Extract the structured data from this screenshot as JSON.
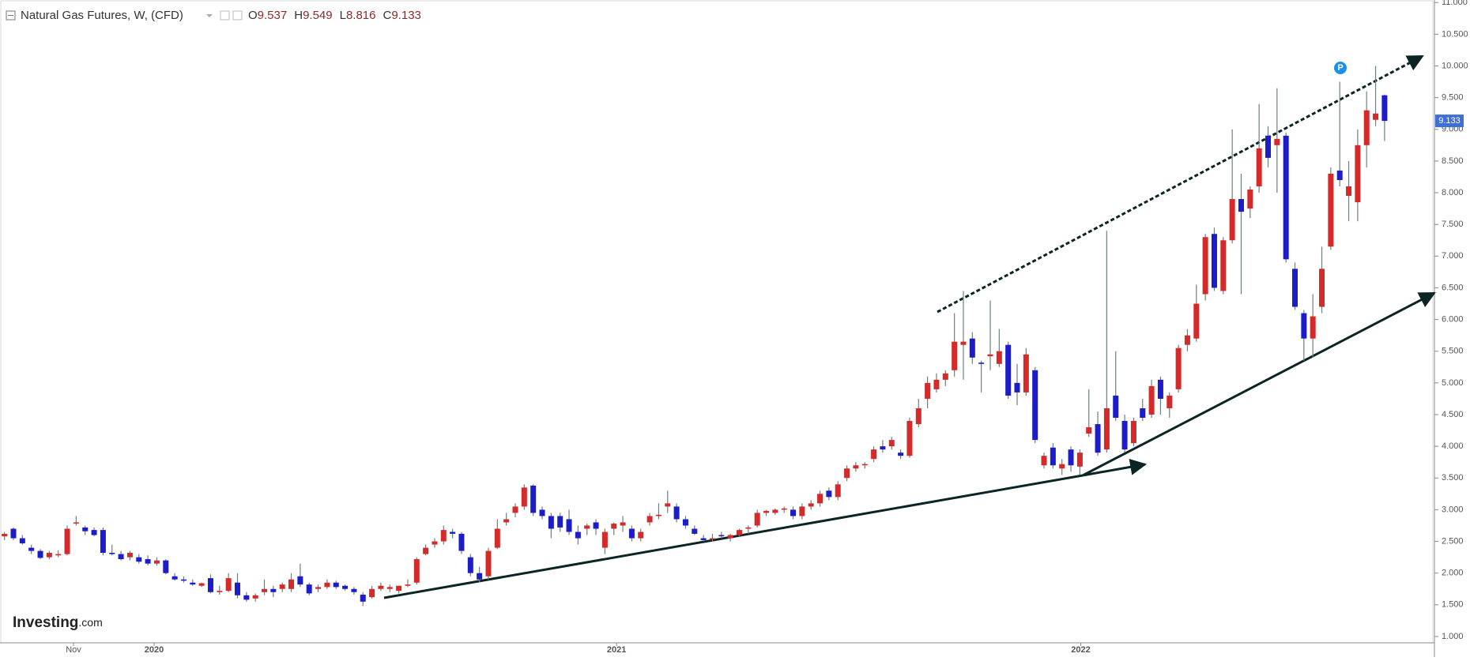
{
  "chart_data": {
    "type": "candlestick",
    "title": "Natural Gas Futures, W, (CFD)",
    "header_values": [
      {
        "prefix": "O",
        "value": 9.537
      },
      {
        "prefix": "H",
        "value": 9.549
      },
      {
        "prefix": "L",
        "value": 8.816
      },
      {
        "prefix": "C",
        "value": 9.133
      }
    ],
    "last_price": 9.133,
    "annotation": "P",
    "logo": {
      "brand": "Investing",
      "suffix": ".com"
    },
    "up_color": "#d42a2a",
    "down_color": "#1c1cc9",
    "wick_color": "#6f7f7f",
    "price_label_color": "#3d6fd6",
    "xlim": [
      -0.5,
      159.3
    ],
    "xticks": [
      {
        "value": 7.7,
        "label": "Nov"
      },
      {
        "value": 16.7,
        "label": "2020"
      },
      {
        "value": 68.3,
        "label": "2021"
      },
      {
        "value": 120.1,
        "label": "2022"
      }
    ],
    "ylim": [
      0.9,
      11.04
    ],
    "yticks": [
      {
        "value": 1,
        "label": "1.000"
      },
      {
        "value": 1.5,
        "label": "1.500"
      },
      {
        "value": 2,
        "label": "2.000"
      },
      {
        "value": 2.5,
        "label": "2.500"
      },
      {
        "value": 3,
        "label": "3.000"
      },
      {
        "value": 3.5,
        "label": "3.500"
      },
      {
        "value": 4,
        "label": "4.000"
      },
      {
        "value": 4.5,
        "label": "4.500"
      },
      {
        "value": 5,
        "label": "5.000"
      },
      {
        "value": 5.5,
        "label": "5.500"
      },
      {
        "value": 6,
        "label": "6.000"
      },
      {
        "value": 6.5,
        "label": "6.500"
      },
      {
        "value": 7,
        "label": "7.000"
      },
      {
        "value": 7.5,
        "label": "7.500"
      },
      {
        "value": 8,
        "label": "8.000"
      },
      {
        "value": 8.5,
        "label": "8.500"
      },
      {
        "value": 9,
        "label": "9.000"
      },
      {
        "value": 9.5,
        "label": "9.500"
      },
      {
        "value": 10,
        "label": "10.000"
      },
      {
        "value": 10.5,
        "label": "10.500"
      },
      {
        "value": 11,
        "label": "11.000"
      }
    ],
    "ohlc": [
      [
        2.58,
        2.65,
        2.52,
        2.62
      ],
      [
        2.7,
        2.72,
        2.52,
        2.55
      ],
      [
        2.55,
        2.6,
        2.45,
        2.47
      ],
      [
        2.4,
        2.45,
        2.3,
        2.35
      ],
      [
        2.35,
        2.38,
        2.22,
        2.24
      ],
      [
        2.25,
        2.35,
        2.22,
        2.32
      ],
      [
        2.28,
        2.36,
        2.25,
        2.3
      ],
      [
        2.3,
        2.75,
        2.28,
        2.7
      ],
      [
        2.78,
        2.9,
        2.75,
        2.8
      ],
      [
        2.72,
        2.75,
        2.6,
        2.66
      ],
      [
        2.68,
        2.72,
        2.58,
        2.6
      ],
      [
        2.68,
        2.72,
        2.28,
        2.32
      ],
      [
        2.32,
        2.45,
        2.28,
        2.3
      ],
      [
        2.3,
        2.35,
        2.2,
        2.22
      ],
      [
        2.25,
        2.35,
        2.2,
        2.32
      ],
      [
        2.25,
        2.3,
        2.15,
        2.18
      ],
      [
        2.22,
        2.28,
        2.12,
        2.15
      ],
      [
        2.15,
        2.25,
        2.12,
        2.2
      ],
      [
        2.2,
        2.22,
        1.98,
        2.0
      ],
      [
        1.95,
        2.0,
        1.88,
        1.9
      ],
      [
        1.9,
        1.95,
        1.85,
        1.88
      ],
      [
        1.85,
        1.9,
        1.8,
        1.82
      ],
      [
        1.8,
        1.85,
        1.78,
        1.84
      ],
      [
        1.92,
        1.98,
        1.68,
        1.7
      ],
      [
        1.7,
        1.8,
        1.66,
        1.72
      ],
      [
        1.72,
        2.0,
        1.7,
        1.92
      ],
      [
        1.85,
        2.0,
        1.6,
        1.65
      ],
      [
        1.65,
        1.7,
        1.55,
        1.58
      ],
      [
        1.6,
        1.68,
        1.55,
        1.65
      ],
      [
        1.7,
        1.9,
        1.65,
        1.75
      ],
      [
        1.75,
        1.8,
        1.62,
        1.7
      ],
      [
        1.75,
        1.85,
        1.7,
        1.82
      ],
      [
        1.75,
        2.0,
        1.7,
        1.9
      ],
      [
        1.95,
        2.15,
        1.78,
        1.82
      ],
      [
        1.82,
        1.85,
        1.65,
        1.68
      ],
      [
        1.75,
        1.82,
        1.7,
        1.78
      ],
      [
        1.78,
        1.9,
        1.75,
        1.85
      ],
      [
        1.85,
        1.88,
        1.75,
        1.78
      ],
      [
        1.8,
        1.82,
        1.72,
        1.75
      ],
      [
        1.75,
        1.78,
        1.66,
        1.7
      ],
      [
        1.66,
        1.7,
        1.48,
        1.55
      ],
      [
        1.62,
        1.8,
        1.6,
        1.75
      ],
      [
        1.75,
        1.85,
        1.72,
        1.8
      ],
      [
        1.75,
        1.82,
        1.7,
        1.78
      ],
      [
        1.72,
        1.8,
        1.68,
        1.8
      ],
      [
        1.8,
        1.9,
        1.78,
        1.82
      ],
      [
        1.85,
        2.25,
        1.82,
        2.22
      ],
      [
        2.3,
        2.45,
        2.28,
        2.4
      ],
      [
        2.45,
        2.55,
        2.4,
        2.5
      ],
      [
        2.5,
        2.75,
        2.45,
        2.68
      ],
      [
        2.65,
        2.7,
        2.55,
        2.62
      ],
      [
        2.62,
        2.65,
        2.3,
        2.35
      ],
      [
        2.25,
        2.3,
        1.95,
        2.0
      ],
      [
        2.0,
        2.1,
        1.85,
        1.9
      ],
      [
        1.95,
        2.4,
        1.9,
        2.35
      ],
      [
        2.4,
        2.85,
        2.38,
        2.7
      ],
      [
        2.8,
        2.95,
        2.75,
        2.85
      ],
      [
        2.95,
        3.1,
        2.88,
        3.05
      ],
      [
        3.05,
        3.4,
        3.0,
        3.35
      ],
      [
        3.38,
        3.4,
        2.9,
        2.95
      ],
      [
        3.0,
        3.05,
        2.85,
        2.9
      ],
      [
        2.9,
        2.95,
        2.55,
        2.7
      ],
      [
        2.9,
        2.95,
        2.65,
        2.72
      ],
      [
        2.85,
        3.0,
        2.6,
        2.65
      ],
      [
        2.65,
        2.75,
        2.45,
        2.55
      ],
      [
        2.7,
        2.78,
        2.6,
        2.75
      ],
      [
        2.8,
        2.85,
        2.6,
        2.7
      ],
      [
        2.4,
        2.7,
        2.3,
        2.65
      ],
      [
        2.7,
        2.8,
        2.6,
        2.78
      ],
      [
        2.75,
        2.9,
        2.65,
        2.8
      ],
      [
        2.7,
        2.75,
        2.5,
        2.55
      ],
      [
        2.55,
        2.7,
        2.5,
        2.65
      ],
      [
        2.8,
        2.95,
        2.75,
        2.9
      ],
      [
        2.9,
        3.1,
        2.85,
        2.92
      ],
      [
        3.05,
        3.3,
        2.95,
        3.1
      ],
      [
        3.05,
        3.1,
        2.8,
        2.85
      ],
      [
        2.85,
        2.9,
        2.7,
        2.75
      ],
      [
        2.7,
        2.75,
        2.6,
        2.62
      ],
      [
        2.55,
        2.6,
        2.5,
        2.52
      ],
      [
        2.55,
        2.62,
        2.5,
        2.55
      ],
      [
        2.6,
        2.65,
        2.55,
        2.58
      ],
      [
        2.55,
        2.62,
        2.5,
        2.6
      ],
      [
        2.6,
        2.7,
        2.58,
        2.68
      ],
      [
        2.7,
        2.75,
        2.62,
        2.72
      ],
      [
        2.75,
        3.0,
        2.72,
        2.95
      ],
      [
        2.95,
        3.0,
        2.9,
        2.98
      ],
      [
        2.95,
        3.02,
        2.92,
        3.0
      ],
      [
        3.0,
        3.05,
        2.95,
        3.02
      ],
      [
        3.0,
        3.05,
        2.85,
        2.9
      ],
      [
        2.9,
        3.1,
        2.85,
        3.05
      ],
      [
        3.05,
        3.15,
        3.0,
        3.1
      ],
      [
        3.1,
        3.3,
        3.05,
        3.25
      ],
      [
        3.3,
        3.35,
        3.15,
        3.2
      ],
      [
        3.2,
        3.45,
        3.15,
        3.4
      ],
      [
        3.5,
        3.7,
        3.45,
        3.65
      ],
      [
        3.65,
        3.75,
        3.6,
        3.7
      ],
      [
        3.7,
        3.75,
        3.65,
        3.72
      ],
      [
        3.8,
        4.0,
        3.75,
        3.95
      ],
      [
        4.0,
        4.1,
        3.9,
        3.95
      ],
      [
        4.0,
        4.15,
        3.95,
        4.1
      ],
      [
        3.9,
        3.95,
        3.8,
        3.85
      ],
      [
        3.85,
        4.45,
        3.82,
        4.4
      ],
      [
        4.35,
        4.75,
        4.3,
        4.6
      ],
      [
        4.75,
        5.1,
        4.6,
        5.0
      ],
      [
        4.9,
        5.15,
        4.85,
        5.05
      ],
      [
        5.05,
        5.2,
        4.95,
        5.15
      ],
      [
        5.2,
        6.1,
        5.1,
        5.65
      ],
      [
        5.6,
        6.45,
        5.05,
        5.65
      ],
      [
        5.7,
        5.8,
        5.3,
        5.4
      ],
      [
        5.32,
        5.35,
        4.85,
        5.3
      ],
      [
        5.42,
        6.3,
        5.2,
        5.45
      ],
      [
        5.3,
        5.85,
        5.25,
        5.5
      ],
      [
        5.6,
        5.65,
        4.75,
        4.8
      ],
      [
        5.0,
        5.3,
        4.65,
        4.85
      ],
      [
        4.85,
        5.55,
        4.8,
        5.45
      ],
      [
        5.2,
        5.25,
        4.05,
        4.1
      ],
      [
        3.7,
        3.9,
        3.65,
        3.85
      ],
      [
        3.98,
        4.05,
        3.65,
        3.7
      ],
      [
        3.65,
        3.8,
        3.55,
        3.72
      ],
      [
        3.95,
        4.0,
        3.6,
        3.7
      ],
      [
        3.68,
        3.95,
        3.55,
        3.9
      ],
      [
        4.2,
        4.9,
        4.15,
        4.3
      ],
      [
        4.35,
        4.55,
        3.85,
        3.9
      ],
      [
        3.95,
        7.4,
        3.9,
        4.6
      ],
      [
        4.8,
        5.5,
        4.4,
        4.45
      ],
      [
        4.4,
        4.5,
        3.9,
        3.95
      ],
      [
        4.05,
        4.45,
        4.0,
        4.4
      ],
      [
        4.6,
        4.75,
        4.4,
        4.45
      ],
      [
        4.5,
        5.05,
        4.45,
        4.95
      ],
      [
        5.05,
        5.1,
        4.5,
        4.75
      ],
      [
        4.6,
        4.85,
        4.45,
        4.8
      ],
      [
        4.9,
        5.6,
        4.85,
        5.55
      ],
      [
        5.6,
        5.85,
        5.5,
        5.75
      ],
      [
        5.7,
        6.55,
        5.65,
        6.25
      ],
      [
        6.4,
        7.35,
        6.3,
        7.3
      ],
      [
        7.35,
        7.45,
        6.45,
        6.5
      ],
      [
        6.45,
        7.3,
        6.4,
        7.25
      ],
      [
        7.25,
        9.0,
        7.2,
        7.9
      ],
      [
        7.9,
        8.3,
        6.4,
        7.7
      ],
      [
        7.75,
        8.1,
        7.6,
        8.05
      ],
      [
        8.1,
        9.4,
        8.0,
        8.7
      ],
      [
        8.9,
        9.05,
        8.4,
        8.55
      ],
      [
        8.75,
        9.65,
        8.0,
        8.85
      ],
      [
        8.9,
        8.95,
        6.9,
        6.95
      ],
      [
        6.8,
        6.9,
        6.15,
        6.2
      ],
      [
        6.1,
        6.15,
        5.35,
        5.7
      ],
      [
        5.7,
        6.4,
        5.4,
        6.05
      ],
      [
        6.2,
        7.15,
        6.1,
        6.8
      ],
      [
        7.15,
        8.4,
        7.1,
        8.3
      ],
      [
        8.35,
        9.75,
        8.1,
        8.2
      ],
      [
        7.95,
        8.5,
        7.55,
        8.1
      ],
      [
        7.85,
        9.0,
        7.55,
        8.75
      ],
      [
        8.75,
        9.6,
        8.4,
        9.3
      ],
      [
        9.15,
        10.0,
        9.05,
        9.25
      ],
      [
        9.537,
        9.549,
        8.816,
        9.133
      ]
    ]
  }
}
